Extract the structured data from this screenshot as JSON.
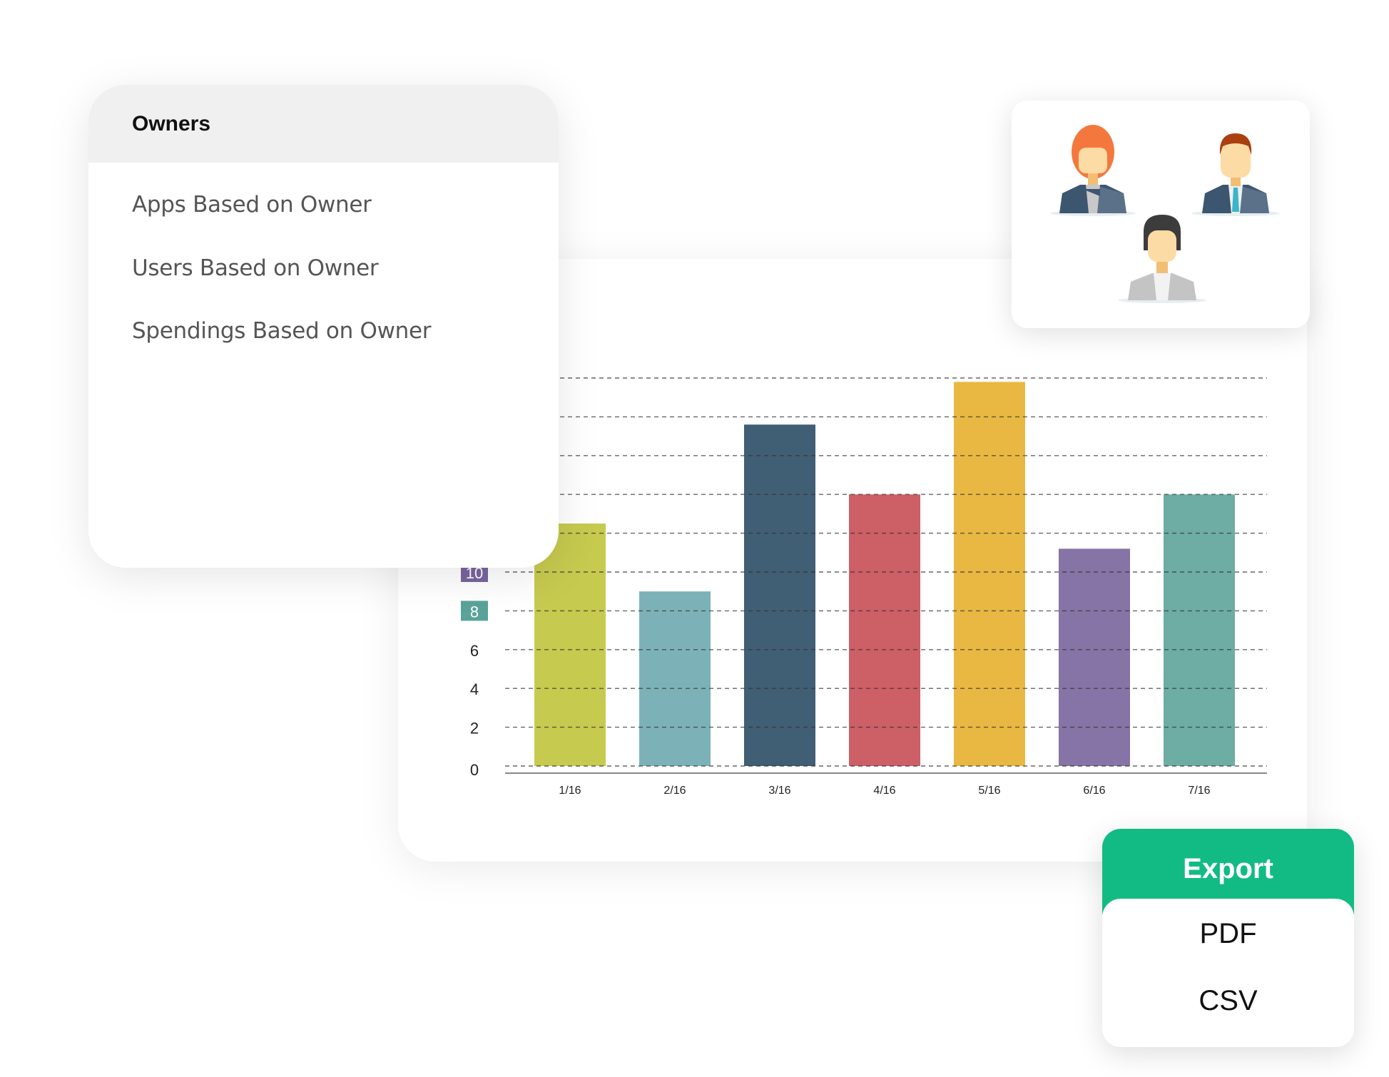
{
  "owners_panel": {
    "title": "Owners",
    "items": [
      "Apps Based on Owner",
      "Users Based on Owner",
      "Spendings Based on Owner"
    ]
  },
  "people_card": {
    "icons": [
      "woman-red-hair-avatar-icon",
      "man-avatar-icon",
      "woman-dark-hair-avatar-icon"
    ]
  },
  "export_menu": {
    "title": "Export",
    "options": [
      "PDF",
      "CSV"
    ],
    "accent": "#13bb84"
  },
  "chart_data": {
    "type": "bar",
    "categories": [
      "1/16",
      "2/16",
      "3/16",
      "4/16",
      "5/16",
      "6/16",
      "7/16"
    ],
    "values": [
      12.5,
      9,
      17.6,
      14,
      19.8,
      11.2,
      14
    ],
    "colors": [
      "#c6ca4e",
      "#7cb2b7",
      "#405e74",
      "#cd5f66",
      "#e8b843",
      "#8574a5",
      "#6dada3"
    ],
    "ylim": [
      0,
      20
    ],
    "y_gridlines": [
      0,
      2,
      4,
      6,
      8,
      10,
      12,
      14,
      16,
      18,
      20
    ],
    "y_tick_labels": [
      {
        "value": 0,
        "label": "0"
      },
      {
        "value": 2,
        "label": "2"
      },
      {
        "value": 4,
        "label": "4"
      },
      {
        "value": 6,
        "label": "6"
      },
      {
        "value": 8,
        "label": "8",
        "badge": "#5aa39a"
      },
      {
        "value": 10,
        "label": "10",
        "badge": "#7a65a0"
      }
    ],
    "grid": "dashed horizontal",
    "xlabel": "",
    "ylabel": "",
    "title": ""
  }
}
